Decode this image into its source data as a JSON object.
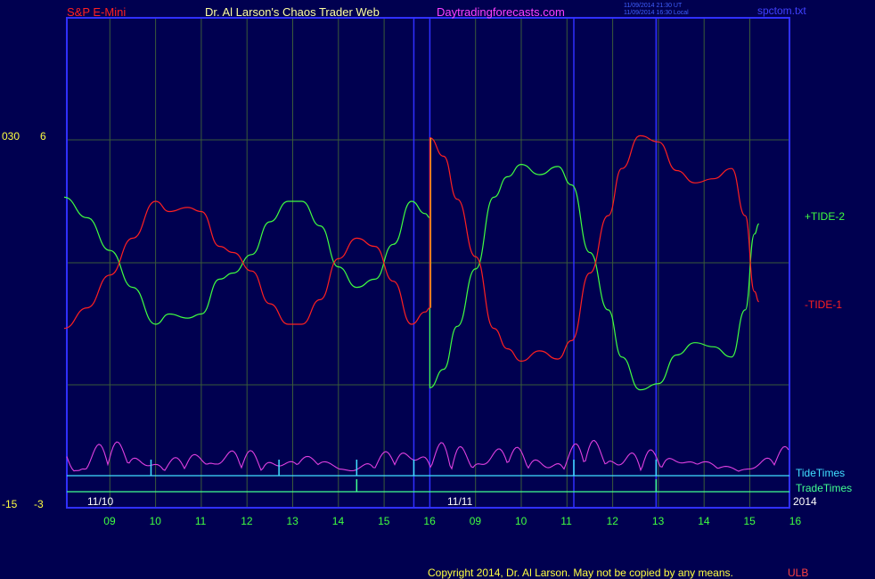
{
  "header": {
    "symbol": "S&P E-Mini",
    "author": "Dr. Al Larson's Chaos Trader Web",
    "site": "Daytradingforecasts.com",
    "timestamp_ut": "11/09/2014 21:30 UT",
    "timestamp_local": "11/09/2014 16:30 Local",
    "file": "spctom.txt"
  },
  "footer": {
    "copyright": "Copyright 2014, Dr. Al Larson. May not be copied by any means.",
    "code": "ULB"
  },
  "left_axis": {
    "upper_a": "030",
    "upper_b": "6",
    "lower_a": "-15",
    "lower_b": "-3"
  },
  "date_labels": {
    "day1": "11/10",
    "day2": "11/11",
    "year": "2014"
  },
  "colors": {
    "background": "#000050",
    "frame": "#3030ff",
    "grid": "#3a5a3a",
    "tide_plus": "#40ff40",
    "tide_minus": "#ff2020",
    "cycle": "#e040e0",
    "tide_times": "#40e0ff",
    "trade_times": "#40ff90",
    "hour_label": "#40ff40",
    "accent_yellow": "#ffff40"
  },
  "chart_data": {
    "type": "line",
    "title": "S&P E-Mini",
    "x_ticks": [
      "09",
      "10",
      "11",
      "12",
      "13",
      "14",
      "15",
      "16",
      "09",
      "10",
      "11",
      "12",
      "13",
      "14",
      "15",
      "16"
    ],
    "series": [
      {
        "name": "+TIDE-2",
        "points": [
          [
            8.0,
            3.2
          ],
          [
            8.5,
            2.2
          ],
          [
            9.0,
            0.6
          ],
          [
            9.5,
            -1.2
          ],
          [
            10.0,
            -3.0
          ],
          [
            10.3,
            -2.5
          ],
          [
            10.7,
            -2.7
          ],
          [
            11.0,
            -2.5
          ],
          [
            11.4,
            -0.8
          ],
          [
            11.7,
            -0.5
          ],
          [
            12.1,
            0.4
          ],
          [
            12.5,
            2.0
          ],
          [
            12.9,
            3.0
          ],
          [
            13.2,
            3.0
          ],
          [
            13.6,
            1.8
          ],
          [
            14.0,
            -0.2
          ],
          [
            14.4,
            -1.2
          ],
          [
            14.8,
            -0.8
          ],
          [
            15.2,
            0.9
          ],
          [
            15.6,
            3.0
          ],
          [
            15.9,
            2.4
          ],
          [
            16.0,
            2.2
          ],
          [
            16.0,
            -6.1
          ],
          [
            16.3,
            -5.2
          ],
          [
            16.6,
            -3.1
          ],
          [
            17.0,
            -0.3
          ],
          [
            17.4,
            3.2
          ],
          [
            17.7,
            4.2
          ],
          [
            18.0,
            4.8
          ],
          [
            18.4,
            4.3
          ],
          [
            18.8,
            4.7
          ],
          [
            19.1,
            3.8
          ],
          [
            19.5,
            0.5
          ],
          [
            19.9,
            -2.3
          ],
          [
            20.2,
            -4.6
          ],
          [
            20.6,
            -6.2
          ],
          [
            21.0,
            -5.9
          ],
          [
            21.4,
            -4.5
          ],
          [
            21.8,
            -3.9
          ],
          [
            22.2,
            -4.1
          ],
          [
            22.6,
            -4.6
          ],
          [
            22.9,
            -2.3
          ],
          [
            23.1,
            1.4
          ],
          [
            23.2,
            1.9
          ]
        ]
      },
      {
        "name": "-TIDE-1",
        "points": [
          [
            8.0,
            -3.2
          ],
          [
            8.5,
            -2.2
          ],
          [
            9.0,
            -0.6
          ],
          [
            9.5,
            1.2
          ],
          [
            10.0,
            3.0
          ],
          [
            10.3,
            2.5
          ],
          [
            10.7,
            2.7
          ],
          [
            11.0,
            2.5
          ],
          [
            11.4,
            0.8
          ],
          [
            11.7,
            0.5
          ],
          [
            12.1,
            -0.4
          ],
          [
            12.5,
            -2.0
          ],
          [
            12.9,
            -3.0
          ],
          [
            13.2,
            -3.0
          ],
          [
            13.6,
            -1.8
          ],
          [
            14.0,
            0.2
          ],
          [
            14.4,
            1.2
          ],
          [
            14.8,
            0.8
          ],
          [
            15.2,
            -0.9
          ],
          [
            15.6,
            -3.0
          ],
          [
            15.9,
            -2.4
          ],
          [
            16.0,
            -2.2
          ],
          [
            16.0,
            6.1
          ],
          [
            16.3,
            5.2
          ],
          [
            16.6,
            3.1
          ],
          [
            17.0,
            0.3
          ],
          [
            17.4,
            -3.2
          ],
          [
            17.7,
            -4.2
          ],
          [
            18.0,
            -4.8
          ],
          [
            18.4,
            -4.3
          ],
          [
            18.8,
            -4.7
          ],
          [
            19.1,
            -3.8
          ],
          [
            19.5,
            -0.5
          ],
          [
            19.9,
            2.3
          ],
          [
            20.2,
            4.6
          ],
          [
            20.6,
            6.2
          ],
          [
            21.0,
            5.9
          ],
          [
            21.4,
            4.5
          ],
          [
            21.8,
            3.9
          ],
          [
            22.2,
            4.1
          ],
          [
            22.6,
            4.6
          ],
          [
            22.9,
            2.3
          ],
          [
            23.1,
            -1.4
          ],
          [
            23.2,
            -1.9
          ]
        ]
      }
    ],
    "tide_times_markers": [
      9.9,
      12.7,
      14.4,
      15.65,
      19.15,
      20.95
    ],
    "trade_times_markers": [
      14.4,
      20.95
    ],
    "legend": [
      "TideTimes",
      "TradeTimes"
    ]
  }
}
